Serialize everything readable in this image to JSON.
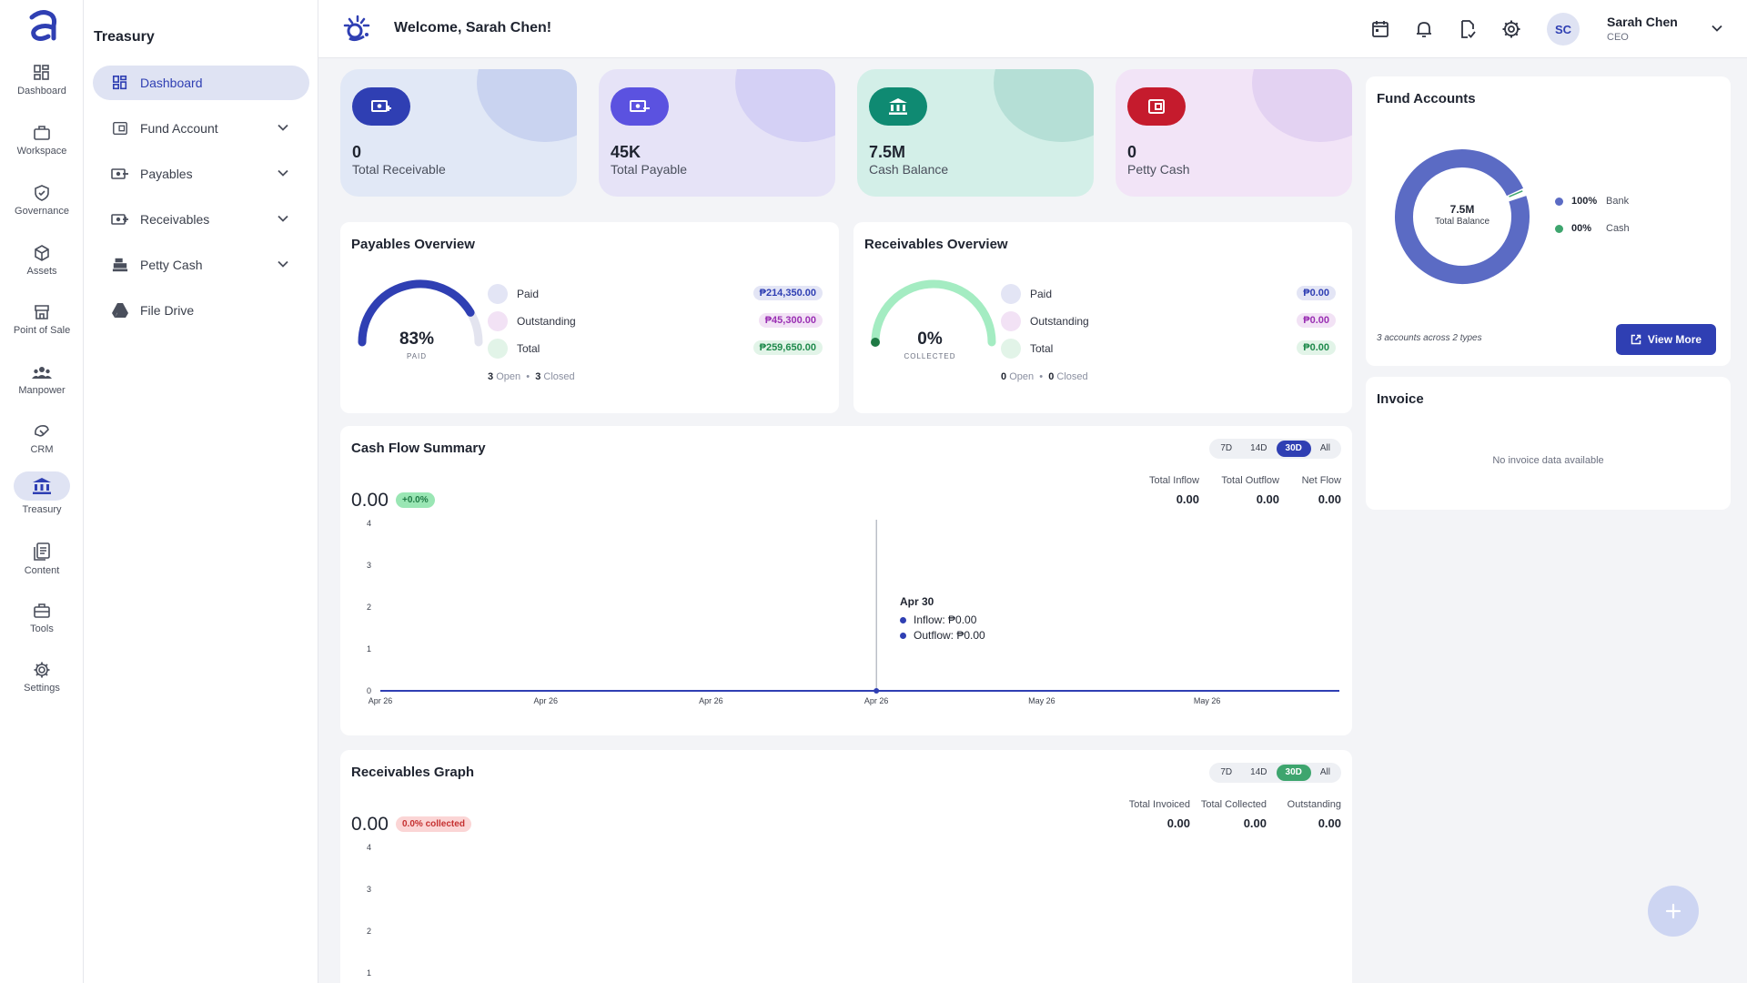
{
  "rail": {
    "items": [
      {
        "label": "Dashboard",
        "icon": "grid-icon"
      },
      {
        "label": "Workspace",
        "icon": "briefcase-icon"
      },
      {
        "label": "Governance",
        "icon": "shield-check-icon"
      },
      {
        "label": "Assets",
        "icon": "cube-icon"
      },
      {
        "label": "Point of Sale",
        "icon": "store-icon"
      },
      {
        "label": "Manpower",
        "icon": "people-icon"
      },
      {
        "label": "CRM",
        "icon": "handshake-icon"
      },
      {
        "label": "Treasury",
        "icon": "bank-icon"
      },
      {
        "label": "Content",
        "icon": "documents-icon"
      },
      {
        "label": "Tools",
        "icon": "toolbox-icon"
      },
      {
        "label": "Settings",
        "icon": "gear-icon"
      }
    ]
  },
  "sidebar": {
    "title": "Treasury",
    "items": [
      {
        "label": "Dashboard",
        "icon": "grid-icon"
      },
      {
        "label": "Fund Account",
        "icon": "wallet-icon"
      },
      {
        "label": "Payables",
        "icon": "cash-out-icon"
      },
      {
        "label": "Receivables",
        "icon": "cash-in-icon"
      },
      {
        "label": "Petty Cash",
        "icon": "register-icon"
      },
      {
        "label": "File Drive",
        "icon": "drive-icon"
      }
    ]
  },
  "header": {
    "welcome": "Welcome, Sarah Chen!",
    "user_name": "Sarah Chen",
    "user_role": "CEO",
    "initials": "SC"
  },
  "stats": [
    {
      "value": "0",
      "label": "Total Receivable"
    },
    {
      "value": "45K",
      "label": "Total Payable"
    },
    {
      "value": "7.5M",
      "label": "Cash Balance"
    },
    {
      "value": "0",
      "label": "Petty Cash"
    }
  ],
  "payables": {
    "title": "Payables Overview",
    "percent": "83%",
    "percent_value": 83,
    "sub": "PAID",
    "legend": [
      {
        "label": "Paid",
        "amount": "₱214,350.00"
      },
      {
        "label": "Outstanding",
        "amount": "₱45,300.00"
      },
      {
        "label": "Total",
        "amount": "₱259,650.00"
      }
    ],
    "open_count": "3",
    "open_label": "Open",
    "closed_count": "3",
    "closed_label": "Closed"
  },
  "receivables": {
    "title": "Receivables Overview",
    "percent": "0%",
    "percent_value": 0,
    "sub": "COLLECTED",
    "legend": [
      {
        "label": "Paid",
        "amount": "₱0.00"
      },
      {
        "label": "Outstanding",
        "amount": "₱0.00"
      },
      {
        "label": "Total",
        "amount": "₱0.00"
      }
    ],
    "open_count": "0",
    "open_label": "Open",
    "closed_count": "0",
    "closed_label": "Closed"
  },
  "cashflow": {
    "title": "Cash Flow Summary",
    "ranges": [
      "7D",
      "14D",
      "30D",
      "All"
    ],
    "selected_range": "30D",
    "value": "0.00",
    "change": "+0.0%",
    "metrics": [
      {
        "label": "Total Inflow",
        "value": "0.00"
      },
      {
        "label": "Total Outflow",
        "value": "0.00"
      },
      {
        "label": "Net Flow",
        "value": "0.00"
      }
    ],
    "tooltip": {
      "date": "Apr 30",
      "inflow": "Inflow: ₱0.00",
      "outflow": "Outflow: ₱0.00"
    }
  },
  "receivables_graph": {
    "title": "Receivables Graph",
    "ranges": [
      "7D",
      "14D",
      "30D",
      "All"
    ],
    "selected_range": "30D",
    "value": "0.00",
    "badge": "0.0% collected",
    "metrics": [
      {
        "label": "Total Invoiced",
        "value": "0.00"
      },
      {
        "label": "Total Collected",
        "value": "0.00"
      },
      {
        "label": "Outstanding",
        "value": "0.00"
      }
    ]
  },
  "fund_accounts": {
    "title": "Fund Accounts",
    "center_value": "7.5M",
    "center_label": "Total Balance",
    "legend": [
      {
        "percent": "100%",
        "label": "Bank",
        "color": "#5b6bc4"
      },
      {
        "percent": "00%",
        "label": "Cash",
        "color": "#3ea56e"
      }
    ],
    "footnote": "3 accounts across 2 types",
    "button": "View More"
  },
  "invoice": {
    "title": "Invoice",
    "empty": "No invoice data available"
  },
  "chart_data": [
    {
      "type": "line",
      "title": "Cash Flow Summary",
      "x": [
        "Apr 26",
        "Apr 26",
        "Apr 26",
        "Apr 26",
        "May 26",
        "May 26"
      ],
      "series": [
        {
          "name": "Inflow",
          "values": [
            0,
            0,
            0,
            0,
            0,
            0
          ]
        },
        {
          "name": "Outflow",
          "values": [
            0,
            0,
            0,
            0,
            0,
            0
          ]
        }
      ],
      "ylim": [
        0,
        4
      ],
      "yticks": [
        "0",
        "1",
        "2",
        "3",
        "4"
      ]
    },
    {
      "type": "line",
      "title": "Receivables Graph",
      "ylim": [
        0,
        4
      ],
      "yticks": [
        "1",
        "2",
        "3",
        "4"
      ]
    },
    {
      "type": "pie",
      "title": "Fund Accounts",
      "categories": [
        "Bank",
        "Cash"
      ],
      "values": [
        100,
        0
      ]
    }
  ]
}
